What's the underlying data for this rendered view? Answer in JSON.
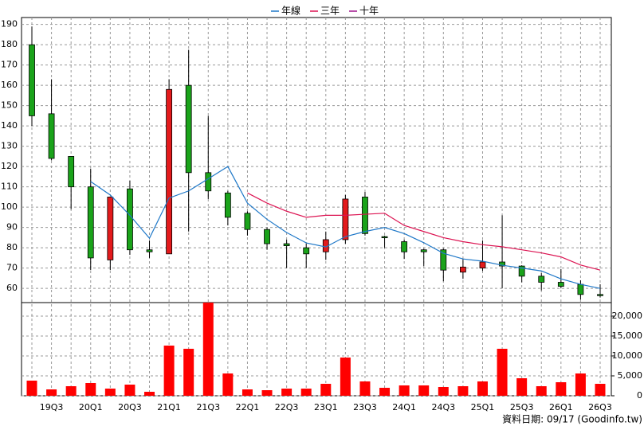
{
  "chart_data": {
    "type": "candlestick",
    "categories": [
      null,
      "19Q3",
      null,
      "20Q1",
      null,
      "20Q3",
      null,
      "21Q1",
      null,
      "21Q3",
      null,
      "22Q1",
      null,
      "22Q3",
      null,
      "23Q1",
      null,
      "23Q3",
      null,
      "24Q1",
      null,
      "24Q3",
      null,
      "25Q1",
      null,
      "25Q3",
      null,
      "26Q1",
      null,
      "26Q3"
    ],
    "open": [
      180,
      146,
      125,
      110,
      74,
      109,
      79,
      77,
      160,
      117,
      107,
      97,
      89,
      82,
      80,
      78,
      84,
      105,
      85.5,
      83,
      79,
      79,
      68,
      70,
      73,
      71,
      66,
      63,
      62,
      57
    ],
    "high": [
      189,
      163,
      125,
      119,
      105,
      113,
      83.6,
      163,
      177.5,
      145,
      108,
      98,
      90,
      84,
      82,
      88,
      106,
      107.5,
      86,
      84,
      79.5,
      79.6,
      74.5,
      83.6,
      96,
      71.4,
      67.5,
      69.5,
      64,
      62
    ],
    "low": [
      140,
      123,
      99,
      69,
      69,
      76.5,
      75,
      77,
      88,
      104,
      91,
      86,
      79,
      70,
      70,
      74,
      82,
      86,
      80,
      74.5,
      71,
      63.5,
      64.7,
      68.6,
      60,
      63,
      59,
      60,
      54.5,
      55.5
    ],
    "close": [
      145,
      124,
      110,
      75,
      105,
      79,
      78,
      158,
      117,
      108,
      95,
      89,
      82,
      81,
      77,
      84,
      104,
      87,
      85,
      78,
      78,
      69,
      70.5,
      73,
      71,
      66,
      63,
      61,
      57,
      56.5
    ],
    "up_color": "#e31a1c",
    "down_color": "#1aa31a",
    "ylim": [
      53,
      193.4
    ],
    "yticks": [
      60,
      70,
      80,
      90,
      100,
      110,
      120,
      130,
      140,
      150,
      160,
      170,
      180,
      190
    ],
    "series": [
      {
        "name": "年線",
        "color": "#1f78c8",
        "values": [
          null,
          null,
          null,
          112.6,
          106,
          96,
          84.7,
          104.5,
          108,
          114,
          120,
          102,
          94,
          87.5,
          82.4,
          80.4,
          85.5,
          88,
          90,
          87,
          82.5,
          77.3,
          74.5,
          73.4,
          71.4,
          70,
          68.6,
          64.7,
          62,
          60
        ]
      },
      {
        "name": "三年",
        "color": "#dc1452",
        "values": [
          null,
          null,
          null,
          null,
          null,
          null,
          null,
          null,
          null,
          null,
          null,
          107,
          102,
          98,
          95,
          96,
          96,
          96.5,
          97,
          91,
          88,
          85,
          83,
          81.5,
          80.5,
          79,
          77.5,
          75.5,
          71.5,
          69
        ]
      },
      {
        "name": "十年",
        "color": "#a0148c",
        "values": [
          null,
          null,
          null,
          null,
          null,
          null,
          null,
          null,
          null,
          null,
          null,
          null,
          null,
          null,
          null,
          null,
          null,
          null,
          null,
          null,
          null,
          null,
          null,
          null,
          null,
          null,
          null,
          null,
          null,
          null
        ]
      }
    ],
    "volume": {
      "color": "#ff0000",
      "values": [
        3800,
        1600,
        2400,
        3200,
        1800,
        2800,
        1000,
        12600,
        11800,
        23400,
        5600,
        1600,
        1400,
        1800,
        1800,
        3000,
        9600,
        3600,
        2000,
        2600,
        2600,
        2200,
        2400,
        3600,
        11800,
        4400,
        2400,
        3400,
        5600,
        3000
      ],
      "ylim": [
        0,
        23400
      ],
      "yticks": [
        0,
        {
          "value": 5000,
          "label": "5,000"
        },
        {
          "value": 10000,
          "label": "10,000"
        },
        {
          "value": 15000,
          "label": "15,000"
        },
        {
          "value": 20000,
          "label": "20,000"
        }
      ]
    },
    "grid": true,
    "note": "資料日期: 09/17  (Goodinfo.tw)"
  }
}
